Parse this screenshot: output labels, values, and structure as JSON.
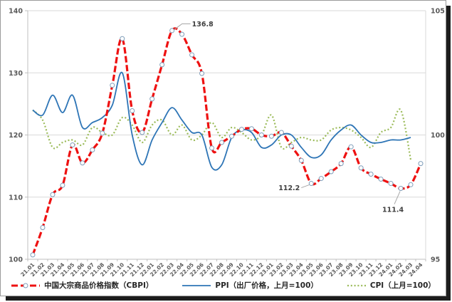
{
  "chart_data": {
    "type": "line",
    "title": "",
    "grid": "horizontal",
    "legend_position": "bottom",
    "categories": [
      "21.01",
      "21.02",
      "21.03",
      "21.04",
      "21.05",
      "21.06",
      "21.07",
      "21.08",
      "21.09",
      "21.10",
      "21.11",
      "21.12",
      "22.01",
      "22.02",
      "22.03",
      "22.04",
      "22.05",
      "22.06",
      "22.07",
      "22.08",
      "22.09",
      "22.10",
      "22.11",
      "22.12",
      "23.01",
      "23.02",
      "23.03",
      "23.04",
      "23.05",
      "23.06",
      "23.07",
      "23.08",
      "23.09",
      "23.10",
      "23.11",
      "23.12",
      "24.01",
      "24.02",
      "24.03",
      "24.04"
    ],
    "left_axis": {
      "min": 100,
      "max": 140,
      "ticks": [
        "100",
        "110",
        "120",
        "130",
        "140"
      ]
    },
    "right_axis": {
      "min": 95,
      "max": 105,
      "ticks": [
        "95",
        "100",
        "105"
      ]
    },
    "series": [
      {
        "name": "中国大宗商品价格指数（CBPI）",
        "axis": "left",
        "color": "#ee1111",
        "style": "dashed-line-with-circle-markers",
        "values": [
          100.7,
          105.1,
          110.4,
          111.9,
          118.4,
          115.5,
          117.6,
          120.3,
          128.0,
          135.5,
          123.9,
          120.4,
          125.8,
          131.3,
          136.8,
          136.2,
          132.9,
          129.9,
          117.9,
          118.8,
          119.8,
          120.9,
          121.0,
          120.0,
          119.8,
          120.4,
          118.2,
          115.9,
          112.2,
          113.0,
          114.1,
          115.4,
          118.1,
          114.7,
          113.7,
          112.9,
          112.2,
          111.4,
          112.0,
          115.4
        ]
      },
      {
        "name": "PPI（出厂价格，上月=100）",
        "axis": "right",
        "color": "#2e75b6",
        "style": "solid-smooth-line",
        "values": [
          101.0,
          100.8,
          101.6,
          100.9,
          101.6,
          100.3,
          100.5,
          100.7,
          101.2,
          102.5,
          100.0,
          98.8,
          99.8,
          100.5,
          101.1,
          100.6,
          100.1,
          100.0,
          98.7,
          98.8,
          99.9,
          100.2,
          100.1,
          99.5,
          99.6,
          100.0,
          100.0,
          99.5,
          99.1,
          99.2,
          99.8,
          100.2,
          100.4,
          100.0,
          99.7,
          99.7,
          99.8,
          99.8,
          99.9
        ]
      },
      {
        "name": "CPI（上月=100）",
        "axis": "right",
        "color": "#9bbb59",
        "style": "dotted-line",
        "values": [
          101.0,
          100.6,
          99.5,
          99.7,
          99.8,
          99.6,
          100.3,
          100.1,
          100.0,
          100.7,
          100.4,
          99.7,
          100.4,
          100.6,
          100.0,
          100.4,
          99.8,
          100.0,
          100.5,
          99.9,
          100.3,
          100.1,
          99.8,
          100.0,
          100.8,
          99.5,
          99.7,
          99.9,
          99.8,
          99.8,
          100.2,
          100.3,
          100.2,
          99.9,
          99.5,
          100.1,
          100.3,
          101.0,
          99.0
        ]
      }
    ],
    "annotations": [
      {
        "text": "136.8",
        "series": "CBPI",
        "category": "22.03",
        "index": 14
      },
      {
        "text": "112.2",
        "series": "CBPI",
        "category": "23.05",
        "index": 28
      },
      {
        "text": "111.4",
        "series": "CBPI",
        "category": "24.02",
        "index": 37
      }
    ]
  }
}
